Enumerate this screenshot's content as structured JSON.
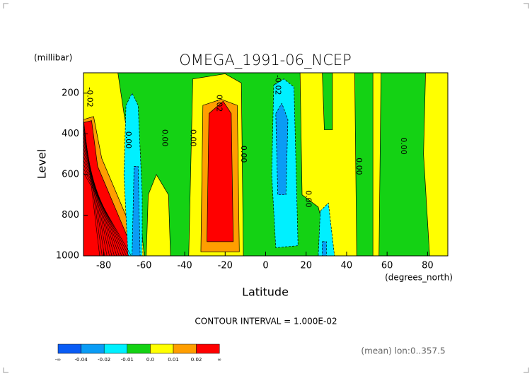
{
  "chart_data": {
    "type": "contour",
    "title": "OMEGA_1991-06_NCEP",
    "y_units": "(millibar)",
    "y_label": "Level",
    "x_label": "Latitude",
    "x_units": "(degrees_north)",
    "subtitle": "CONTOUR INTERVAL = 1.000E-02",
    "footnote": "(mean) lon:0..357.5",
    "xlim": [
      -90,
      90
    ],
    "xticks": [
      -80,
      -60,
      -40,
      -20,
      0,
      20,
      40,
      60,
      80
    ],
    "ylim": [
      1000,
      100
    ],
    "yticks": [
      200,
      400,
      600,
      800,
      1000
    ],
    "contour_labels": [
      "-0.02",
      "0.00",
      "0.00",
      "0.00",
      "0.02",
      "0.00",
      "-0.02",
      "0.00",
      "0.00",
      "0.00"
    ],
    "colorbar": {
      "colors": [
        "#0a5cf5",
        "#0a9cf5",
        "#00f0ff",
        "#14d214",
        "#ffff00",
        "#ff9e00",
        "#ff0000"
      ],
      "ticks": [
        {
          "label": "-∞"
        },
        -0.04,
        -0.02,
        -0.01,
        {
          "value": 0,
          "label": "0.0"
        },
        0.01,
        0.02,
        {
          "label": "∞"
        }
      ]
    }
  }
}
